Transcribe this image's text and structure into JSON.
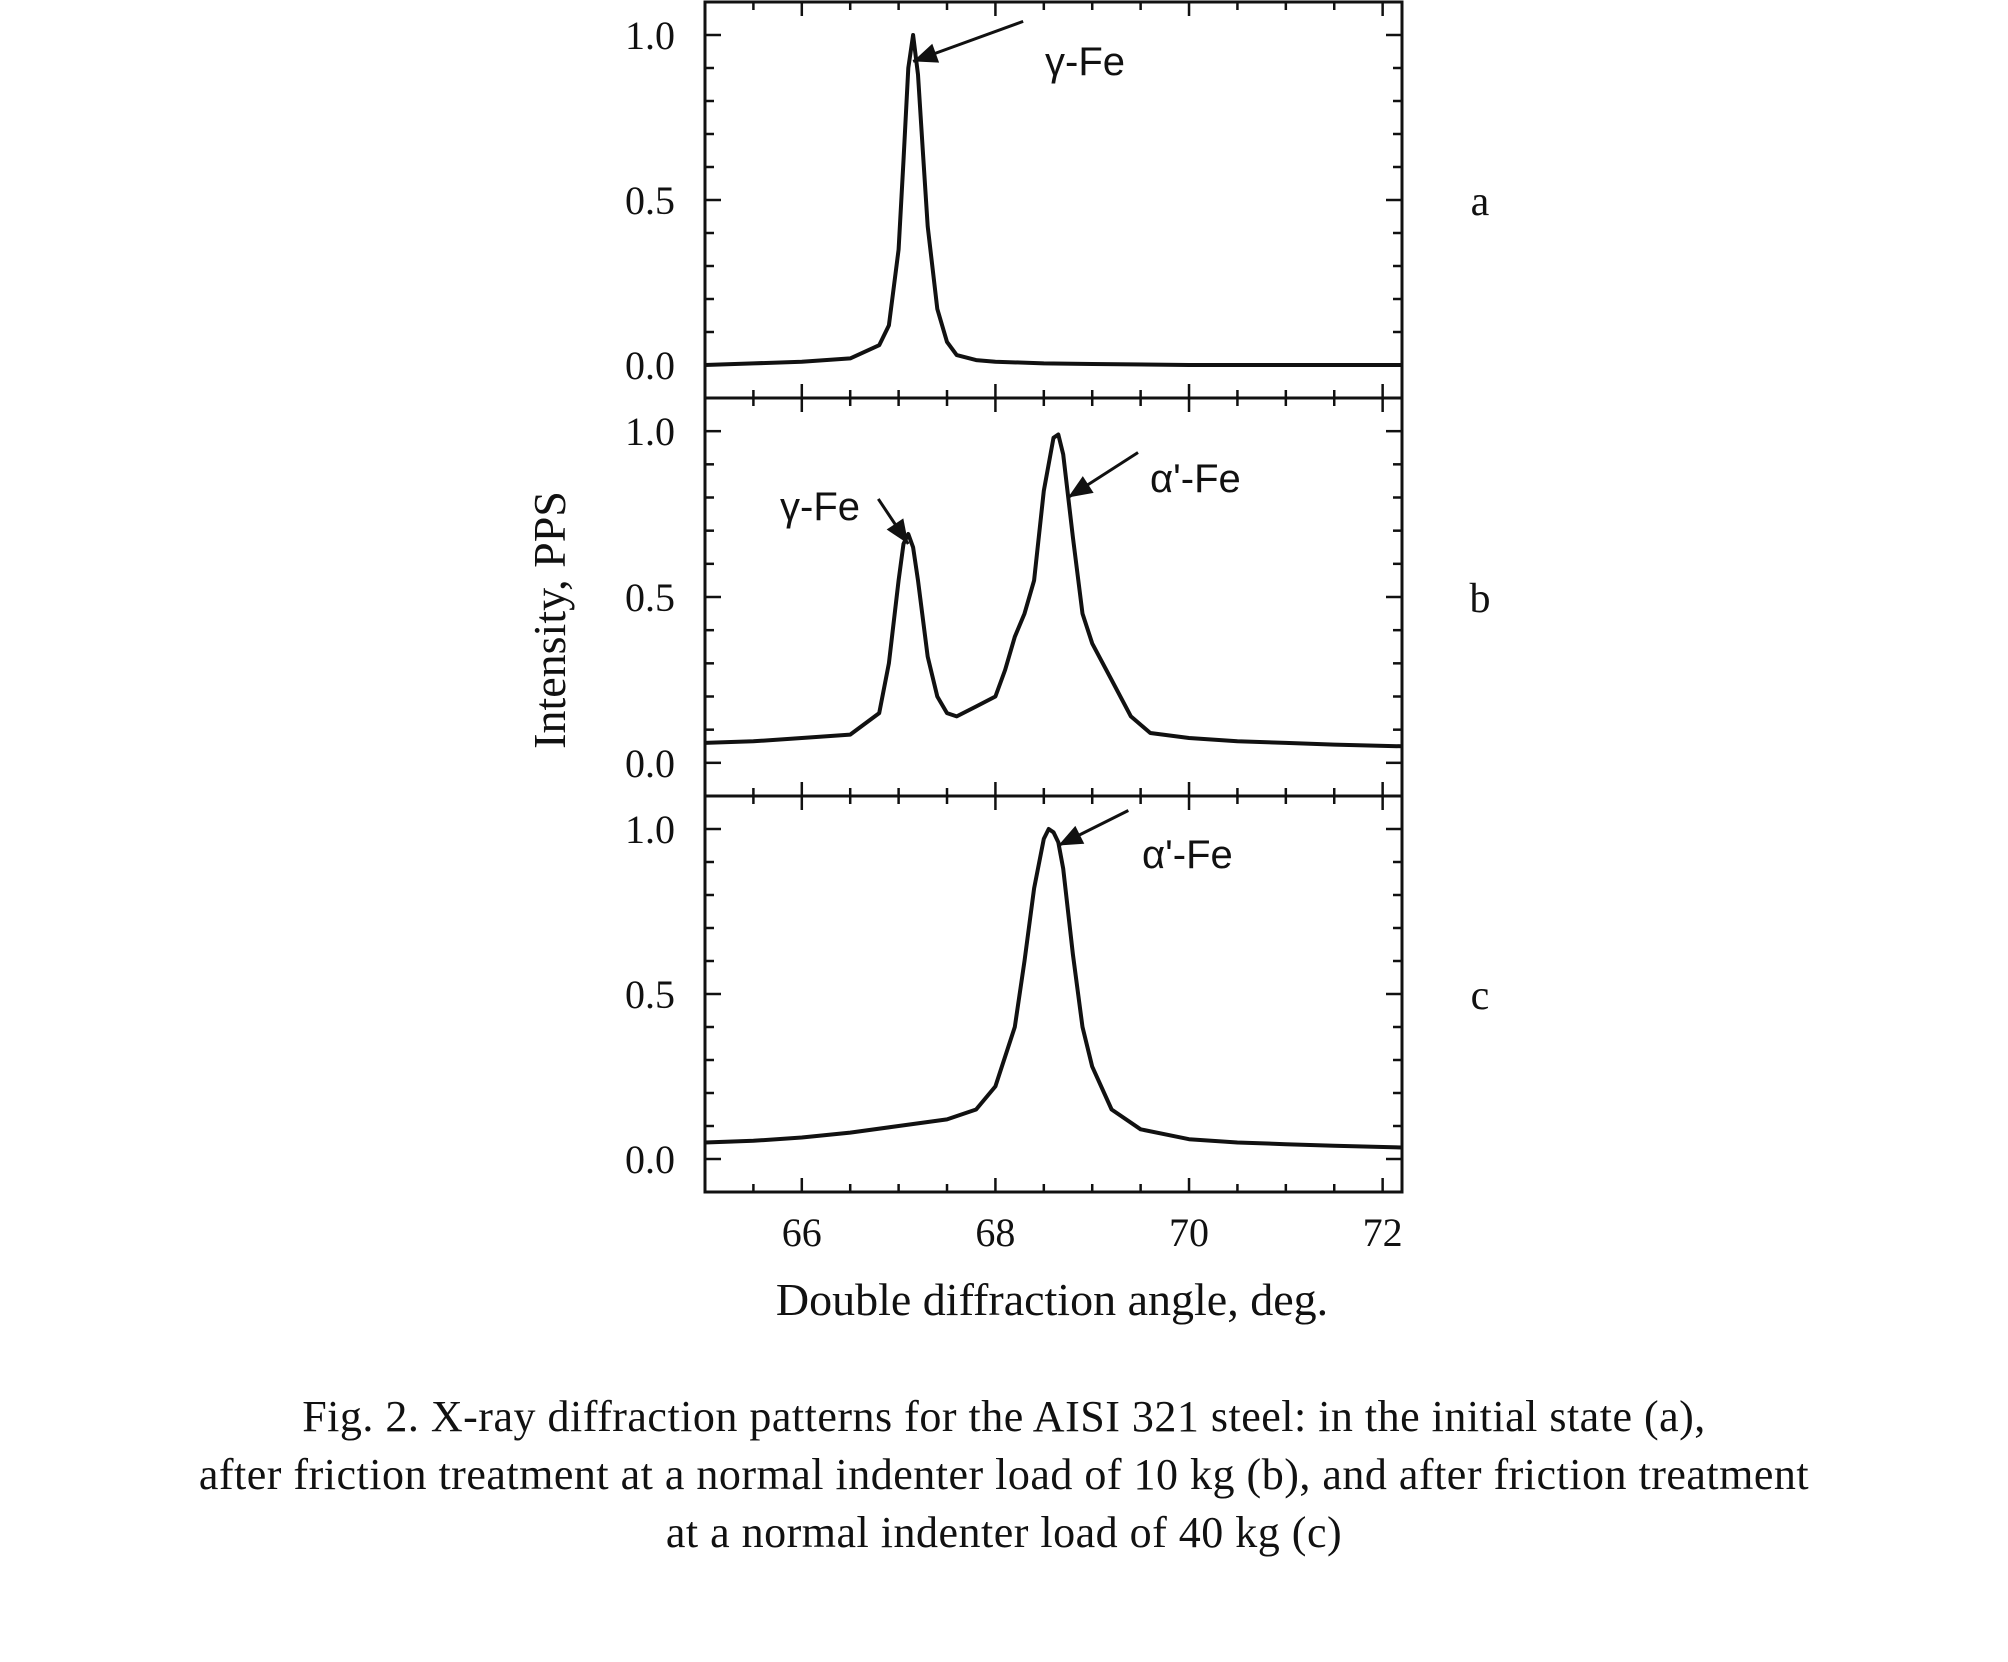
{
  "figure": {
    "xlabel": "Double diffraction angle, deg.",
    "ylabel": "Intensity, PPS",
    "caption_lines": [
      "Fig. 2. X-ray diffraction patterns for the AISI 321 steel: in the initial state (a),",
      "after friction treatment at a normal indenter load of 10 kg (b), and after friction treatment",
      "at a normal indenter load of 40 kg (c)"
    ]
  },
  "chart_data": [
    {
      "type": "line",
      "panel_label": "a",
      "xlim": [
        65,
        72.2
      ],
      "ylim": [
        -0.1,
        1.1
      ],
      "xticks": [
        66,
        68,
        70,
        72
      ],
      "yticks": [
        0.0,
        0.5,
        1.0
      ],
      "ytick_labels": [
        "0.0",
        "0.5",
        "1.0"
      ],
      "x": [
        65.0,
        65.5,
        66.0,
        66.5,
        66.8,
        66.9,
        67.0,
        67.05,
        67.1,
        67.15,
        67.2,
        67.25,
        67.3,
        67.4,
        67.5,
        67.6,
        67.8,
        68.0,
        68.5,
        69.0,
        70.0,
        71.0,
        72.2
      ],
      "series": [
        {
          "values": [
            0.0,
            0.005,
            0.01,
            0.02,
            0.06,
            0.12,
            0.35,
            0.62,
            0.9,
            1.0,
            0.88,
            0.65,
            0.42,
            0.17,
            0.07,
            0.03,
            0.015,
            0.01,
            0.005,
            0.003,
            0.0,
            0.0,
            0.0
          ]
        }
      ],
      "annotations": [
        {
          "text": "γ-Fe",
          "x": 67.15,
          "y": 0.92
        }
      ]
    },
    {
      "type": "line",
      "panel_label": "b",
      "xlim": [
        65,
        72.2
      ],
      "ylim": [
        -0.1,
        1.1
      ],
      "xticks": [
        66,
        68,
        70,
        72
      ],
      "yticks": [
        0.0,
        0.5,
        1.0
      ],
      "ytick_labels": [
        "0.0",
        "0.5",
        "1.0"
      ],
      "x": [
        65.0,
        65.5,
        66.0,
        66.5,
        66.8,
        66.9,
        67.0,
        67.05,
        67.1,
        67.15,
        67.2,
        67.3,
        67.4,
        67.5,
        67.6,
        67.8,
        68.0,
        68.1,
        68.2,
        68.3,
        68.4,
        68.5,
        68.6,
        68.65,
        68.7,
        68.8,
        68.9,
        69.0,
        69.2,
        69.4,
        69.6,
        70.0,
        70.5,
        71.0,
        71.5,
        72.2
      ],
      "series": [
        {
          "values": [
            0.06,
            0.065,
            0.075,
            0.085,
            0.15,
            0.3,
            0.55,
            0.66,
            0.69,
            0.65,
            0.55,
            0.32,
            0.2,
            0.15,
            0.14,
            0.17,
            0.2,
            0.28,
            0.38,
            0.45,
            0.55,
            0.82,
            0.98,
            0.99,
            0.93,
            0.68,
            0.45,
            0.36,
            0.25,
            0.14,
            0.09,
            0.075,
            0.065,
            0.06,
            0.055,
            0.05
          ]
        }
      ],
      "annotations": [
        {
          "text": "γ-Fe",
          "x": 67.1,
          "y": 0.66
        },
        {
          "text": "α'-Fe",
          "x": 68.75,
          "y": 0.8
        }
      ]
    },
    {
      "type": "line",
      "panel_label": "c",
      "xlim": [
        65,
        72.2
      ],
      "ylim": [
        -0.1,
        1.1
      ],
      "xticks": [
        66,
        68,
        70,
        72
      ],
      "yticks": [
        0.0,
        0.5,
        1.0
      ],
      "ytick_labels": [
        "0.0",
        "0.5",
        "1.0"
      ],
      "x": [
        65.0,
        65.5,
        66.0,
        66.5,
        67.0,
        67.5,
        67.8,
        68.0,
        68.2,
        68.3,
        68.4,
        68.5,
        68.55,
        68.6,
        68.65,
        68.7,
        68.8,
        68.9,
        69.0,
        69.2,
        69.5,
        70.0,
        70.5,
        71.0,
        71.5,
        72.2
      ],
      "series": [
        {
          "values": [
            0.05,
            0.055,
            0.065,
            0.08,
            0.1,
            0.12,
            0.15,
            0.22,
            0.4,
            0.6,
            0.82,
            0.97,
            1.0,
            0.99,
            0.96,
            0.88,
            0.62,
            0.4,
            0.28,
            0.15,
            0.09,
            0.06,
            0.05,
            0.045,
            0.04,
            0.035
          ]
        }
      ],
      "annotations": [
        {
          "text": "α'-Fe",
          "x": 68.65,
          "y": 0.95
        }
      ]
    }
  ]
}
